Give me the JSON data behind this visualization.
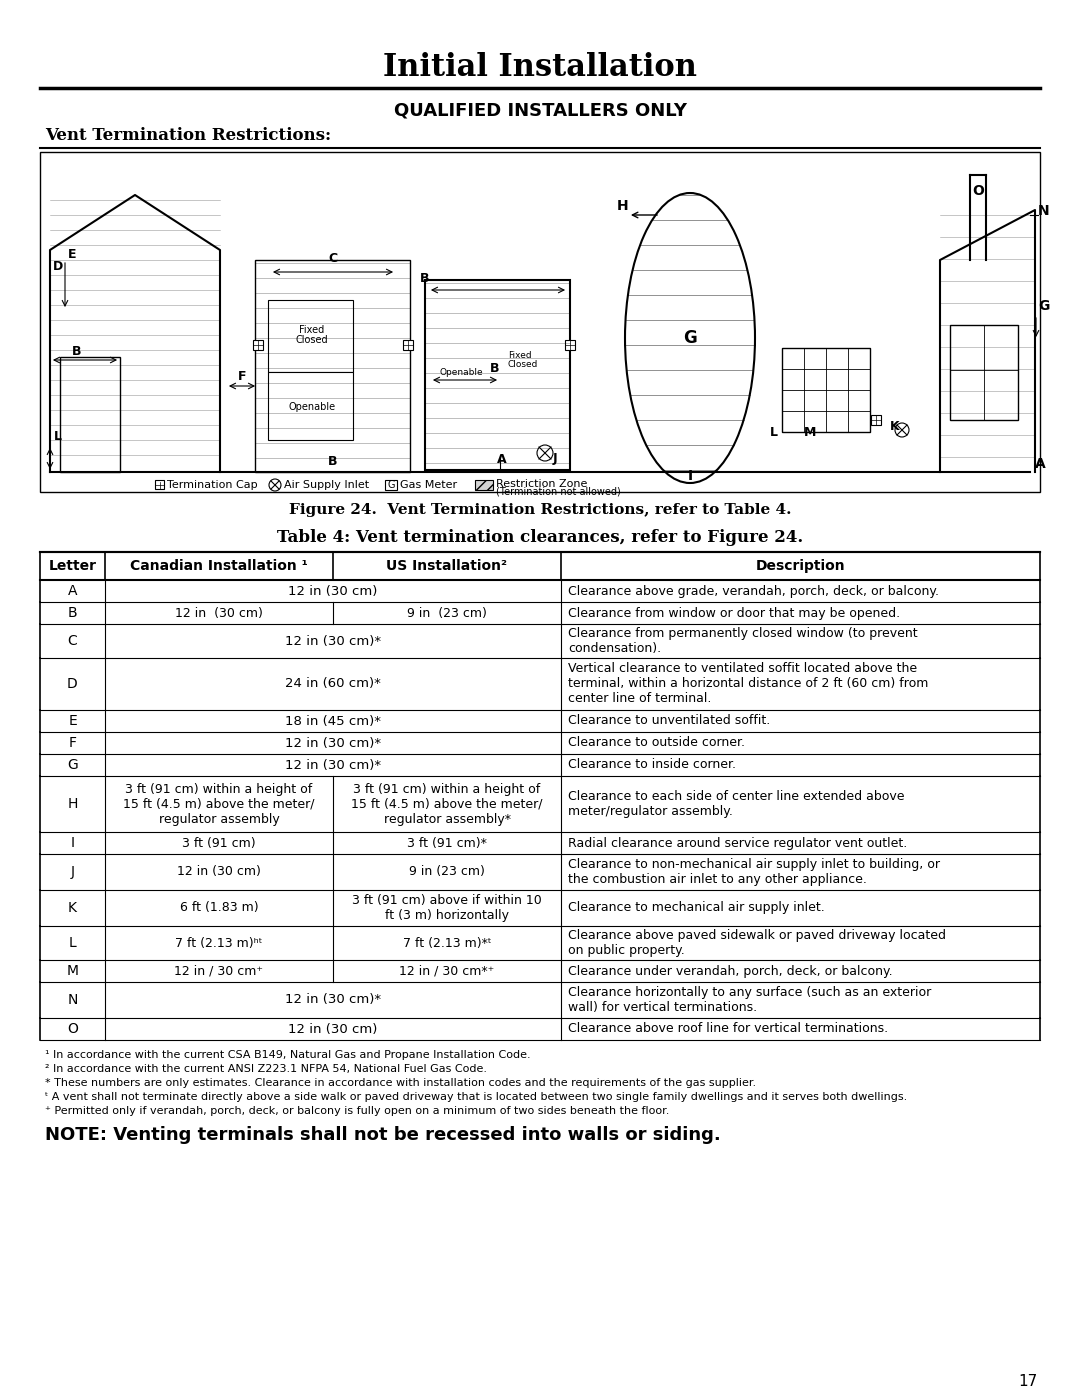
{
  "title": "Initial Installation",
  "subtitle": "QUALIFIED INSTALLERS ONLY",
  "section_header": "Vent Termination Restrictions:",
  "figure_caption": "Figure 24.  Vent Termination Restrictions, refer to Table 4.",
  "table_title": "Table 4: Vent termination clearances, refer to Figure 24.",
  "table_headers": [
    "Letter",
    "Canadian Installation ¹",
    "US Installation²",
    "Description"
  ],
  "table_rows": [
    [
      "A",
      "12 in (30 cm)",
      "12 in (30 cm)",
      "Clearance above grade, verandah, porch, deck, or balcony."
    ],
    [
      "B",
      "12 in  (30 cm)",
      "9 in  (23 cm)",
      "Clearance from window or door that may be opened."
    ],
    [
      "C",
      "12 in (30 cm)*",
      "12 in (30 cm)*",
      "Clearance from permanently closed window (to prevent\ncondensation)."
    ],
    [
      "D",
      "24 in (60 cm)*",
      "24 in (60 cm)*",
      "Vertical clearance to ventilated soffit located above the\nterminal, within a horizontal distance of 2 ft (60 cm) from\ncenter line of terminal."
    ],
    [
      "E",
      "18 in (45 cm)*",
      "18 in (45 cm)*",
      "Clearance to unventilated soffit."
    ],
    [
      "F",
      "12 in (30 cm)*",
      "12 in (30 cm)*",
      "Clearance to outside corner."
    ],
    [
      "G",
      "12 in (30 cm)*",
      "12 in (30 cm)*",
      "Clearance to inside corner."
    ],
    [
      "H",
      "3 ft (91 cm) within a height of\n15 ft (4.5 m) above the meter/\nregulator assembly",
      "3 ft (91 cm) within a height of\n15 ft (4.5 m) above the meter/\nregulator assembly*",
      "Clearance to each side of center line extended above\nmeter/regulator assembly."
    ],
    [
      "I",
      "3 ft (91 cm)",
      "3 ft (91 cm)*",
      "Radial clearance around service regulator vent outlet."
    ],
    [
      "J",
      "12 in (30 cm)",
      "9 in (23 cm)",
      "Clearance to non-mechanical air supply inlet to building, or\nthe combustion air inlet to any other appliance."
    ],
    [
      "K",
      "6 ft (1.83 m)",
      "3 ft (91 cm) above if within 10\nft (3 m) horizontally",
      "Clearance to mechanical air supply inlet."
    ],
    [
      "L",
      "7 ft (2.13 m)ʰᵗ",
      "7 ft (2.13 m)*ᵗ",
      "Clearance above paved sidewalk or paved driveway located\non public property."
    ],
    [
      "M",
      "12 in / 30 cm⁺",
      "12 in / 30 cm*⁺",
      "Clearance under verandah, porch, deck, or balcony."
    ],
    [
      "N",
      "12 in (30 cm)*",
      "12 in (30 cm)*",
      "Clearance horizontally to any surface (such as an exterior\nwall) for vertical terminations."
    ],
    [
      "O",
      "12 in (30 cm)",
      "12 in (30 cm)",
      "Clearance above roof line for vertical terminations."
    ]
  ],
  "merged_rows": [
    0,
    2,
    3,
    4,
    5,
    6,
    13,
    14
  ],
  "footnotes": [
    "¹ In accordance with the current CSA B149, Natural Gas and Propane Installation Code.",
    "² In accordance with the current ANSI Z223.1 NFPA 54, National Fuel Gas Code.",
    "* These numbers are only estimates. Clearance in accordance with installation codes and the requirements of the gas supplier.",
    "ᵗ A vent shall not terminate directly above a side walk or paved driveway that is located between two single family dwellings and it serves both dwellings.",
    "⁺ Permitted only if verandah, porch, deck, or balcony is fully open on a minimum of two sides beneath the floor."
  ],
  "note": "NOTE: Venting terminals shall not be recessed into walls or siding.",
  "page_number": "17",
  "bg_color": "#ffffff",
  "text_color": "#000000"
}
